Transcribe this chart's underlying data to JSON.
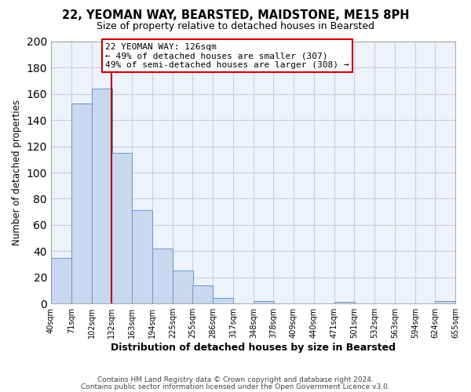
{
  "title": "22, YEOMAN WAY, BEARSTED, MAIDSTONE, ME15 8PH",
  "subtitle": "Size of property relative to detached houses in Bearsted",
  "xlabel": "Distribution of detached houses by size in Bearsted",
  "ylabel": "Number of detached properties",
  "bar_left_edges": [
    40,
    71,
    102,
    132,
    163,
    194,
    225,
    255,
    286,
    317,
    348,
    378,
    409,
    440,
    471,
    501,
    532,
    563,
    594,
    624
  ],
  "bar_heights": [
    35,
    153,
    164,
    115,
    71,
    42,
    25,
    14,
    4,
    0,
    2,
    0,
    0,
    0,
    1,
    0,
    0,
    0,
    0,
    2
  ],
  "bin_width": 31,
  "tick_labels": [
    "40sqm",
    "71sqm",
    "102sqm",
    "132sqm",
    "163sqm",
    "194sqm",
    "225sqm",
    "255sqm",
    "286sqm",
    "317sqm",
    "348sqm",
    "378sqm",
    "409sqm",
    "440sqm",
    "471sqm",
    "501sqm",
    "532sqm",
    "563sqm",
    "594sqm",
    "624sqm",
    "655sqm"
  ],
  "bar_color": "#c8d8ee",
  "bar_edgecolor": "#6699cc",
  "grid_color": "#ccccdd",
  "vline_x": 132,
  "vline_color": "#bb0000",
  "annotation_title": "22 YEOMAN WAY: 126sqm",
  "annotation_line1": "← 49% of detached houses are smaller (307)",
  "annotation_line2": "49% of semi-detached houses are larger (308) →",
  "ylim": [
    0,
    200
  ],
  "yticks": [
    0,
    20,
    40,
    60,
    80,
    100,
    120,
    140,
    160,
    180,
    200
  ],
  "footer1": "Contains HM Land Registry data © Crown copyright and database right 2024.",
  "footer2": "Contains public sector information licensed under the Open Government Licence v3.0.",
  "bg_color": "#ffffff",
  "axes_bg_color": "#eef2fa"
}
